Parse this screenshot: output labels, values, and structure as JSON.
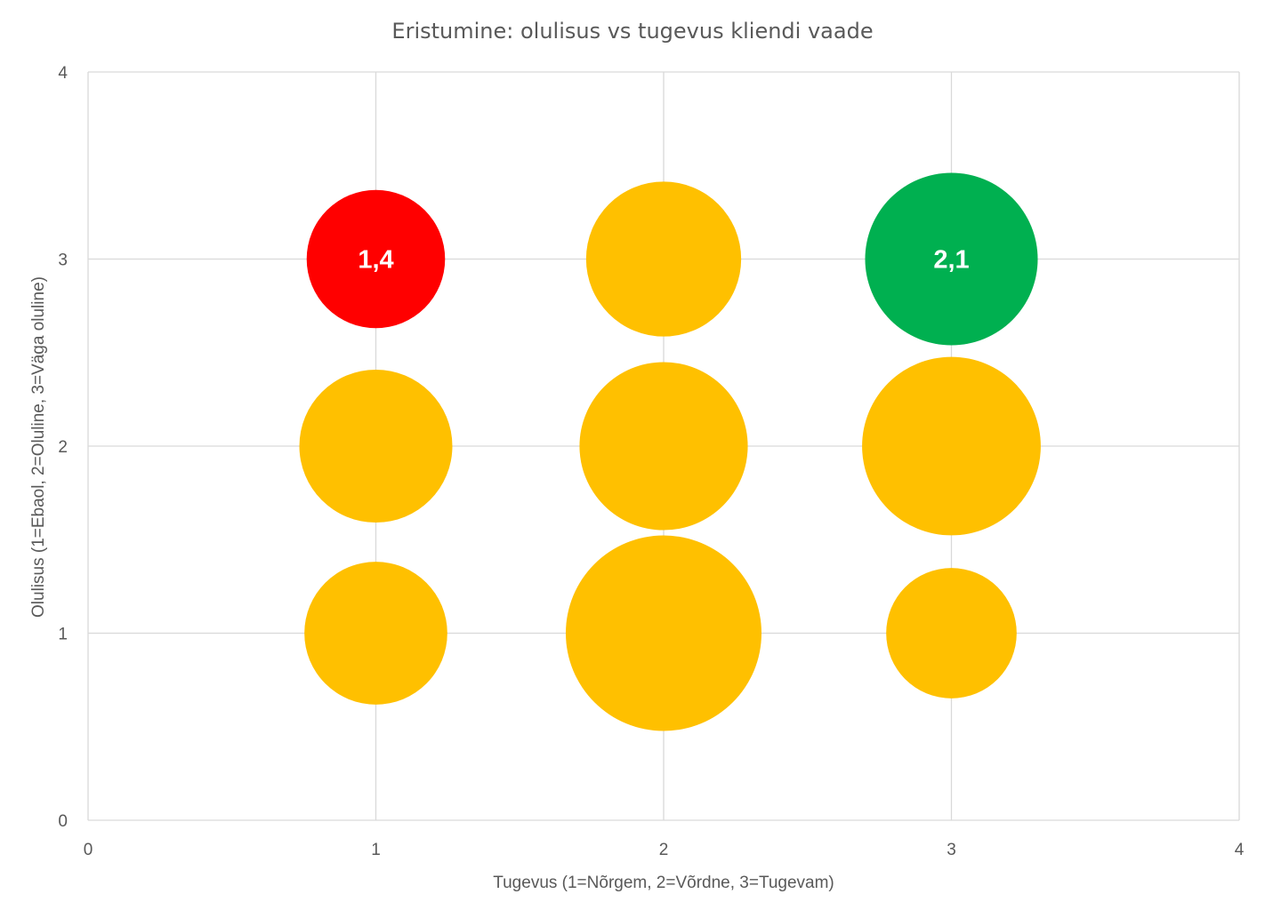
{
  "chart_data": {
    "type": "bubble",
    "title": "Eristumine: olulisus vs tugevus kliendi vaade",
    "xlabel": "Tugevus (1=Nõrgem, 2=Võrdne, 3=Tugevam)",
    "ylabel": "Olulisus (1=Ebaol, 2=Oluline, 3=Väga oluline)",
    "xlim": [
      0,
      4
    ],
    "ylim": [
      0,
      4
    ],
    "xticks": [
      "0",
      "1",
      "2",
      "3",
      "4"
    ],
    "yticks": [
      "0",
      "1",
      "2",
      "3",
      "4"
    ],
    "grid": true,
    "legend": "none",
    "points": [
      {
        "x": 1,
        "y": 3,
        "size": 9,
        "color": "#FF0000",
        "label": "1,4"
      },
      {
        "x": 2,
        "y": 3,
        "size": 11.3,
        "color": "#FFC000",
        "label": ""
      },
      {
        "x": 3,
        "y": 3,
        "size": 14,
        "color": "#00B050",
        "label": "2,1"
      },
      {
        "x": 1,
        "y": 2,
        "size": 11,
        "color": "#FFC000",
        "label": ""
      },
      {
        "x": 2,
        "y": 2,
        "size": 13.3,
        "color": "#FFC000",
        "label": ""
      },
      {
        "x": 3,
        "y": 2,
        "size": 15,
        "color": "#FFC000",
        "label": ""
      },
      {
        "x": 1,
        "y": 1,
        "size": 9.6,
        "color": "#FFC000",
        "label": ""
      },
      {
        "x": 2,
        "y": 1,
        "size": 18,
        "color": "#FFC000",
        "label": ""
      },
      {
        "x": 3,
        "y": 1,
        "size": 8,
        "color": "#FFC000",
        "label": ""
      }
    ]
  }
}
